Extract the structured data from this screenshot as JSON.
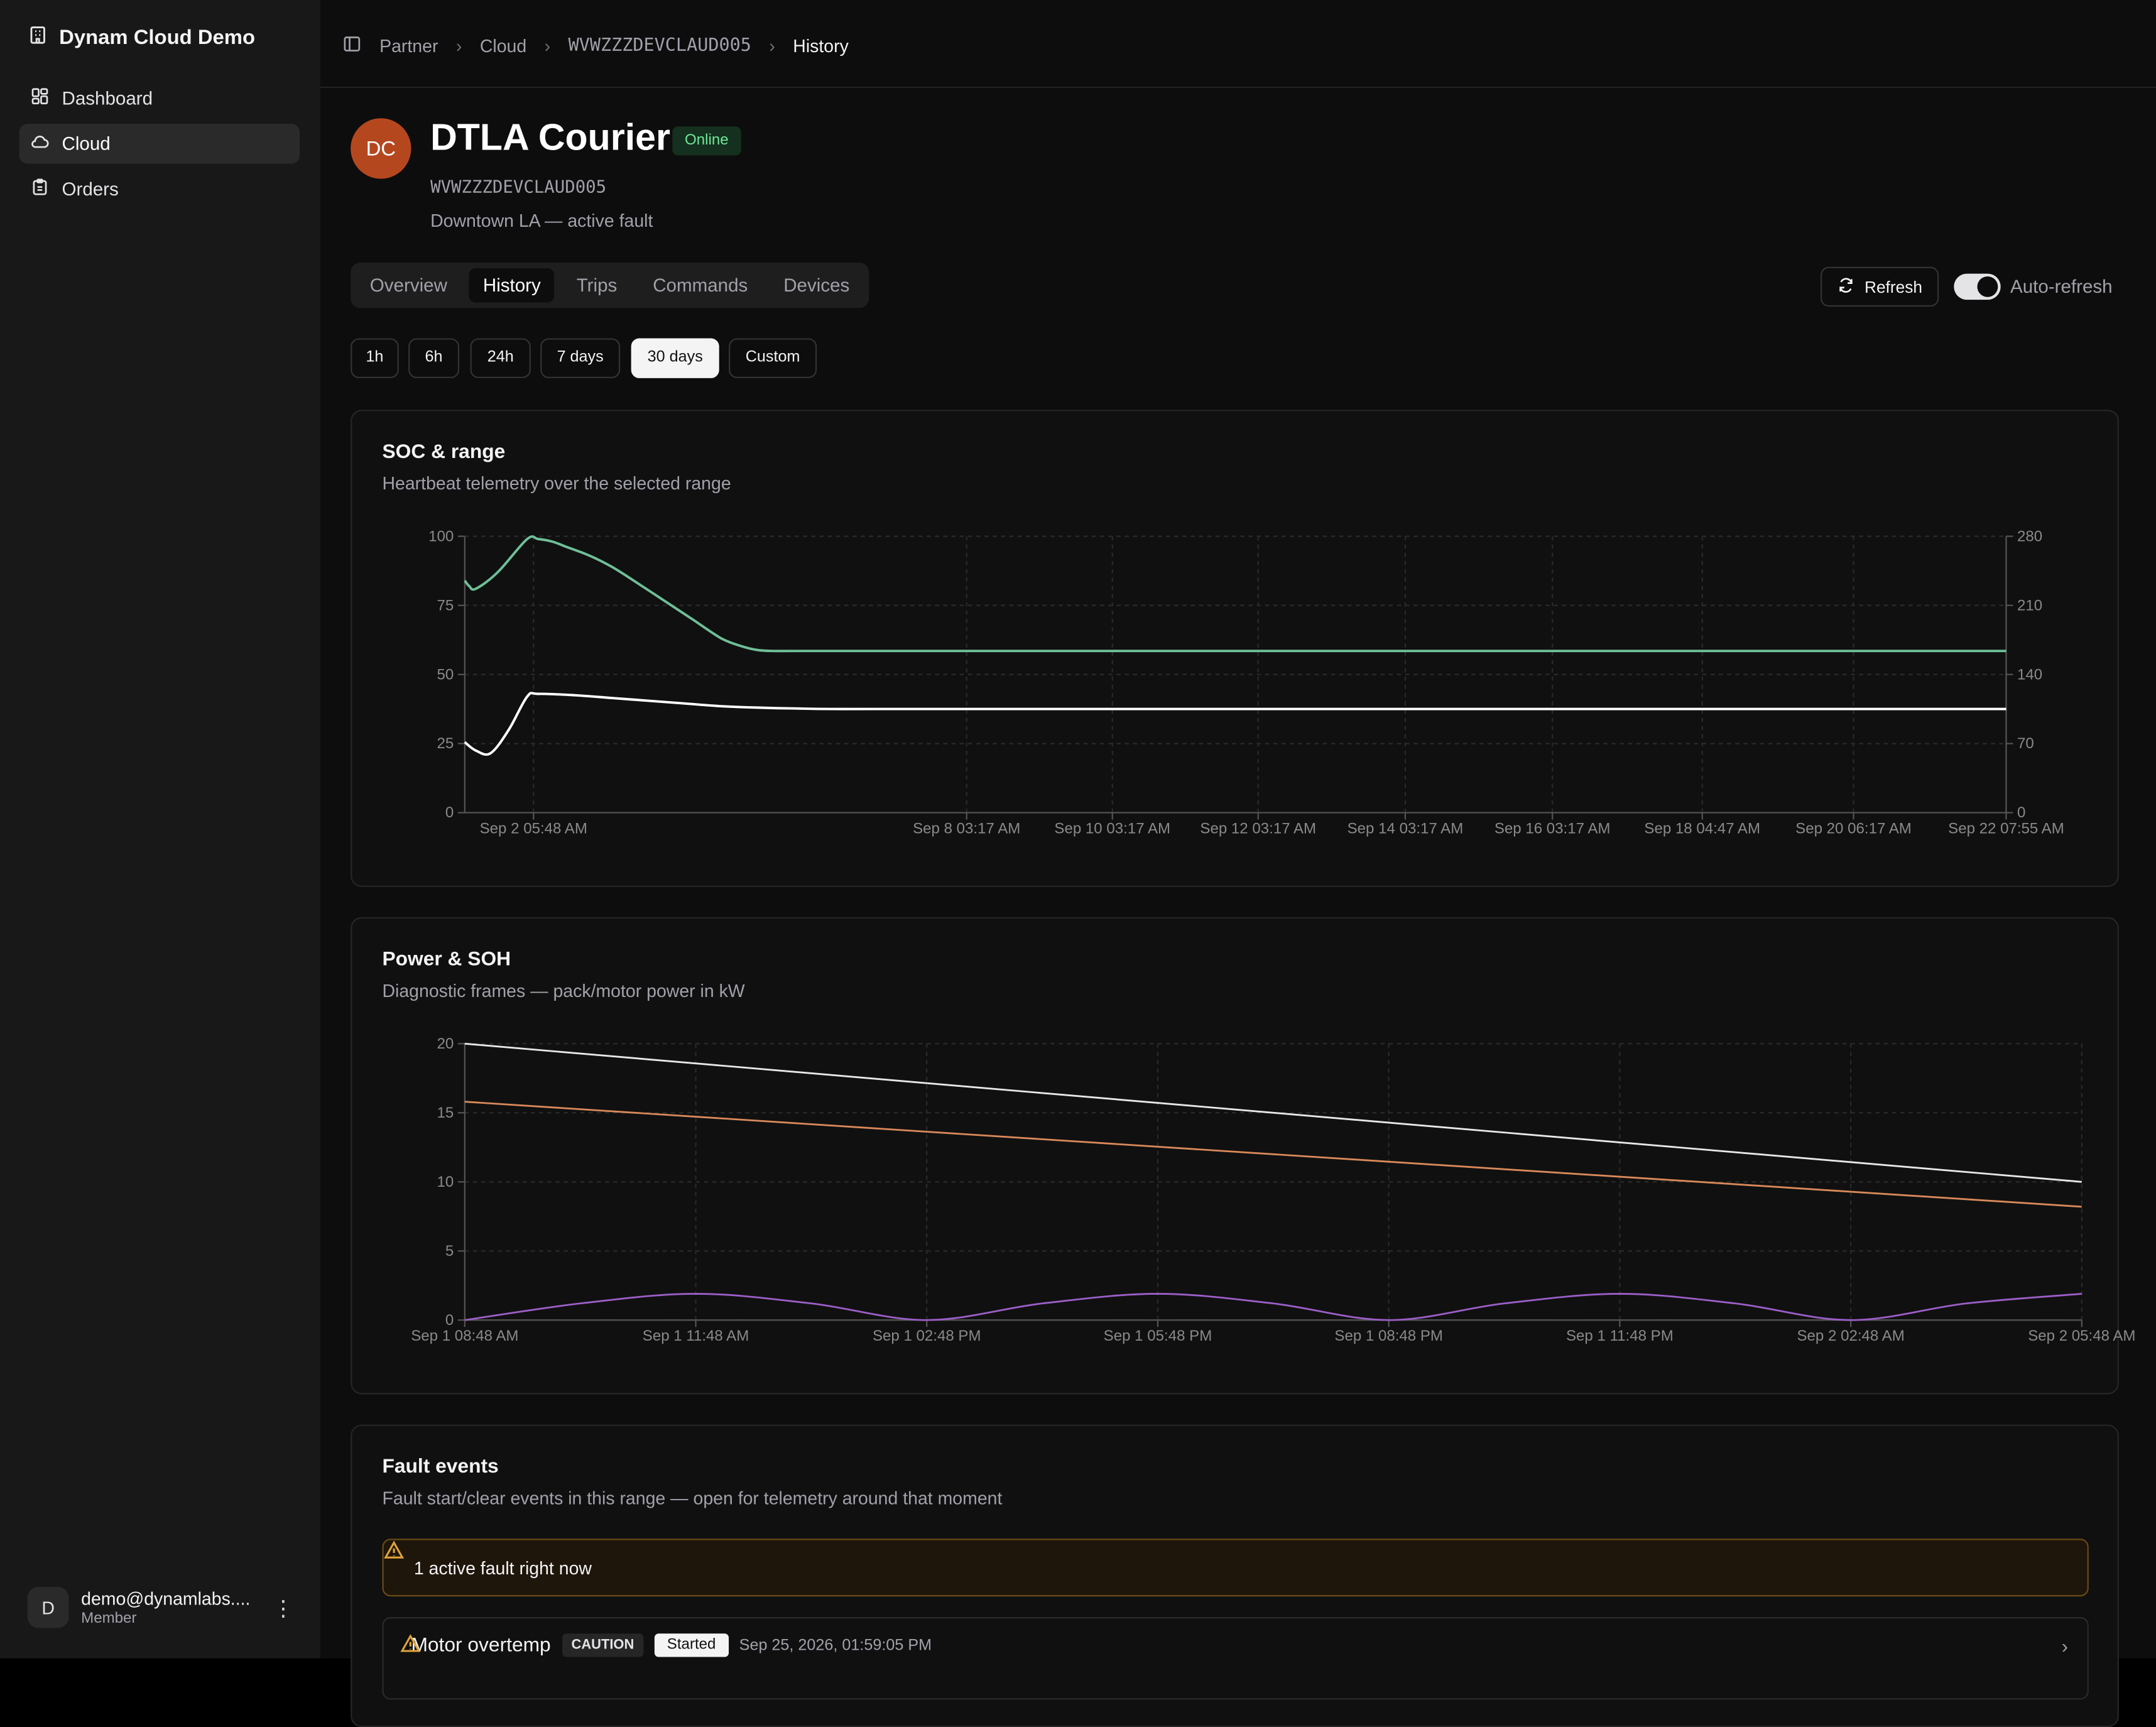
{
  "app": {
    "name": "Dynam Cloud Demo"
  },
  "sidebar": {
    "items": [
      {
        "label": "Dashboard",
        "icon": "grid-icon",
        "active": false
      },
      {
        "label": "Cloud",
        "icon": "cloud-icon",
        "active": true
      },
      {
        "label": "Orders",
        "icon": "clipboard-icon",
        "active": false
      }
    ],
    "user": {
      "initial": "D",
      "email": "demo@dynamlabs....",
      "role": "Member"
    }
  },
  "breadcrumb": [
    "Partner",
    "Cloud",
    "WVWZZZDEVCLAUD005",
    "History"
  ],
  "vehicle": {
    "initials": "DC",
    "name": "DTLA Courier",
    "status": "Online",
    "vin": "WVWZZZDEVCLAUD005",
    "description": "Downtown LA — active fault"
  },
  "tabs": [
    {
      "label": "Overview",
      "active": false
    },
    {
      "label": "History",
      "active": true
    },
    {
      "label": "Trips",
      "active": false
    },
    {
      "label": "Commands",
      "active": false
    },
    {
      "label": "Devices",
      "active": false
    }
  ],
  "actions": {
    "refresh_label": "Refresh",
    "auto_refresh_label": "Auto-refresh",
    "auto_refresh_on": true
  },
  "ranges": [
    {
      "label": "1h",
      "active": false
    },
    {
      "label": "6h",
      "active": false
    },
    {
      "label": "24h",
      "active": false
    },
    {
      "label": "7 days",
      "active": false
    },
    {
      "label": "30 days",
      "active": true
    },
    {
      "label": "Custom",
      "active": false
    }
  ],
  "colors": {
    "soc": "#6fbf98",
    "range": "#ffffff",
    "power_white": "#e8e8e8",
    "power_orange": "#d9895a",
    "power_purple": "#9b5fc7",
    "accent_online": "#6ee79a"
  },
  "cards": {
    "soc": {
      "title": "SOC & range",
      "subtitle": "Heartbeat telemetry over the selected range"
    },
    "power": {
      "title": "Power & SOH",
      "subtitle": "Diagnostic frames — pack/motor power in kW"
    },
    "faults": {
      "title": "Fault events",
      "subtitle": "Fault start/clear events in this range — open for telemetry around that moment"
    }
  },
  "chart_data": [
    {
      "type": "line",
      "title": "SOC & range",
      "x_ticks": [
        "Sep 2 05:48 AM",
        "Sep 8 03:17 AM",
        "Sep 10 03:17 AM",
        "Sep 12 03:17 AM",
        "Sep 14 03:17 AM",
        "Sep 16 03:17 AM",
        "Sep 18 04:47 AM",
        "Sep 20 06:17 AM",
        "Sep 22 07:55 AM"
      ],
      "y_left": {
        "ticks": [
          0,
          25,
          50,
          75,
          100
        ],
        "range": [
          0,
          100
        ]
      },
      "y_right": {
        "ticks": [
          0,
          70,
          140,
          210,
          280
        ],
        "range": [
          0,
          280
        ]
      },
      "grid": true,
      "series": [
        {
          "axis": "left",
          "color": "#6fbf98",
          "x": [
            0,
            0.06,
            0.15,
            0.45,
            0.85,
            1.0,
            1.2,
            1.4,
            1.7,
            2.0,
            2.3,
            2.7,
            3.1,
            3.5,
            3.8,
            4.0,
            4.2,
            4.5,
            5.0,
            6.0,
            10.0,
            15.0,
            20.0,
            21.0
          ],
          "y": [
            84,
            82,
            81,
            87,
            99,
            99,
            98,
            96,
            93,
            89,
            84,
            77,
            70,
            63,
            60,
            58.8,
            58.5,
            58.5,
            58.5,
            58.5,
            58.5,
            58.5,
            58.5,
            58.5
          ]
        },
        {
          "axis": "left",
          "color": "#ffffff",
          "x": [
            0,
            0.15,
            0.35,
            0.6,
            0.85,
            1.0,
            1.5,
            2.0,
            2.5,
            3.0,
            3.5,
            4.0,
            4.5,
            5.0,
            6.0,
            10.0,
            15.0,
            20.0,
            21.0
          ],
          "y": [
            25.5,
            22.5,
            21.5,
            30,
            42,
            43,
            42.5,
            41.5,
            40.5,
            39.5,
            38.5,
            38,
            37.7,
            37.5,
            37.5,
            37.5,
            37.5,
            37.5,
            37.5
          ]
        }
      ]
    },
    {
      "type": "line",
      "title": "Power & SOH",
      "x_ticks": [
        "Sep 1 08:48 AM",
        "Sep 1 11:48 AM",
        "Sep 1 02:48 PM",
        "Sep 1 05:48 PM",
        "Sep 1 08:48 PM",
        "Sep 1 11:48 PM",
        "Sep 2 02:48 AM",
        "Sep 2 05:48 AM"
      ],
      "y": {
        "ticks": [
          0,
          5,
          10,
          15,
          20
        ],
        "range": [
          0,
          20
        ]
      },
      "grid": true,
      "series": [
        {
          "color": "#e8e8e8",
          "x": [
            0,
            21
          ],
          "y": [
            20,
            10
          ]
        },
        {
          "color": "#d9895a",
          "x": [
            0,
            21
          ],
          "y": [
            15.8,
            8.2
          ]
        },
        {
          "color": "#9b5fc7",
          "x": [
            0,
            1.5,
            3,
            4.5,
            6,
            7.5,
            9,
            10.5,
            12,
            13.5,
            15,
            16.5,
            18,
            19.5,
            21
          ],
          "y": [
            0,
            1.2,
            1.9,
            1.2,
            0,
            1.2,
            1.9,
            1.2,
            0,
            1.2,
            1.9,
            1.2,
            0,
            1.2,
            1.9
          ]
        }
      ]
    }
  ],
  "faults": {
    "active_banner": "1 active fault right now",
    "events": [
      {
        "name": "Motor overtemp",
        "severity": "CAUTION",
        "state": "Started",
        "timestamp": "Sep 25, 2026, 01:59:05 PM"
      }
    ]
  }
}
